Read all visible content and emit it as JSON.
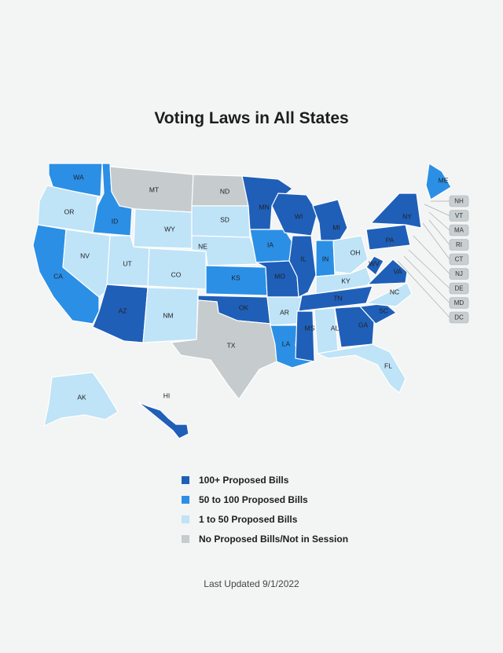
{
  "title": "Voting Laws in All States",
  "colors": {
    "high": "#1f5fb8",
    "mid": "#2b8fe6",
    "low": "#bfe3f7",
    "none": "#c6cbcd"
  },
  "states": [
    {
      "code": "WA",
      "category": "mid"
    },
    {
      "code": "OR",
      "category": "low"
    },
    {
      "code": "CA",
      "category": "mid"
    },
    {
      "code": "ID",
      "category": "mid"
    },
    {
      "code": "NV",
      "category": "low"
    },
    {
      "code": "MT",
      "category": "none"
    },
    {
      "code": "WY",
      "category": "low"
    },
    {
      "code": "UT",
      "category": "low"
    },
    {
      "code": "AZ",
      "category": "high"
    },
    {
      "code": "CO",
      "category": "low"
    },
    {
      "code": "NM",
      "category": "low"
    },
    {
      "code": "ND",
      "category": "none"
    },
    {
      "code": "SD",
      "category": "low"
    },
    {
      "code": "NE",
      "category": "low"
    },
    {
      "code": "KS",
      "category": "mid"
    },
    {
      "code": "OK",
      "category": "high"
    },
    {
      "code": "TX",
      "category": "none"
    },
    {
      "code": "MN",
      "category": "high"
    },
    {
      "code": "IA",
      "category": "mid"
    },
    {
      "code": "MO",
      "category": "high"
    },
    {
      "code": "AR",
      "category": "low"
    },
    {
      "code": "LA",
      "category": "mid"
    },
    {
      "code": "WI",
      "category": "high"
    },
    {
      "code": "IL",
      "category": "high"
    },
    {
      "code": "MI",
      "category": "high"
    },
    {
      "code": "IN",
      "category": "mid"
    },
    {
      "code": "OH",
      "category": "low"
    },
    {
      "code": "KY",
      "category": "low"
    },
    {
      "code": "TN",
      "category": "high"
    },
    {
      "code": "MS",
      "category": "high"
    },
    {
      "code": "AL",
      "category": "low"
    },
    {
      "code": "GA",
      "category": "high"
    },
    {
      "code": "FL",
      "category": "low"
    },
    {
      "code": "SC",
      "category": "high"
    },
    {
      "code": "NC",
      "category": "low"
    },
    {
      "code": "VA",
      "category": "high"
    },
    {
      "code": "WV",
      "category": "high"
    },
    {
      "code": "PA",
      "category": "high"
    },
    {
      "code": "NY",
      "category": "high"
    },
    {
      "code": "ME",
      "category": "mid"
    },
    {
      "code": "AK",
      "category": "low"
    },
    {
      "code": "HI",
      "category": "high"
    },
    {
      "code": "NH",
      "category": "none"
    },
    {
      "code": "VT",
      "category": "none"
    },
    {
      "code": "MA",
      "category": "none"
    },
    {
      "code": "RI",
      "category": "none"
    },
    {
      "code": "CT",
      "category": "none"
    },
    {
      "code": "NJ",
      "category": "none"
    },
    {
      "code": "DE",
      "category": "none"
    },
    {
      "code": "MD",
      "category": "none"
    },
    {
      "code": "DC",
      "category": "none"
    }
  ],
  "callouts": [
    "NH",
    "VT",
    "MA",
    "RI",
    "CT",
    "NJ",
    "DE",
    "MD",
    "DC"
  ],
  "legend": [
    {
      "label": "100+ Proposed Bills",
      "category": "high"
    },
    {
      "label": "50 to 100 Proposed Bills",
      "category": "mid"
    },
    {
      "label": "1 to 50 Proposed Bills",
      "category": "low"
    },
    {
      "label": "No Proposed Bills/Not in Session",
      "category": "none"
    }
  ],
  "updated": "Last Updated 9/1/2022"
}
